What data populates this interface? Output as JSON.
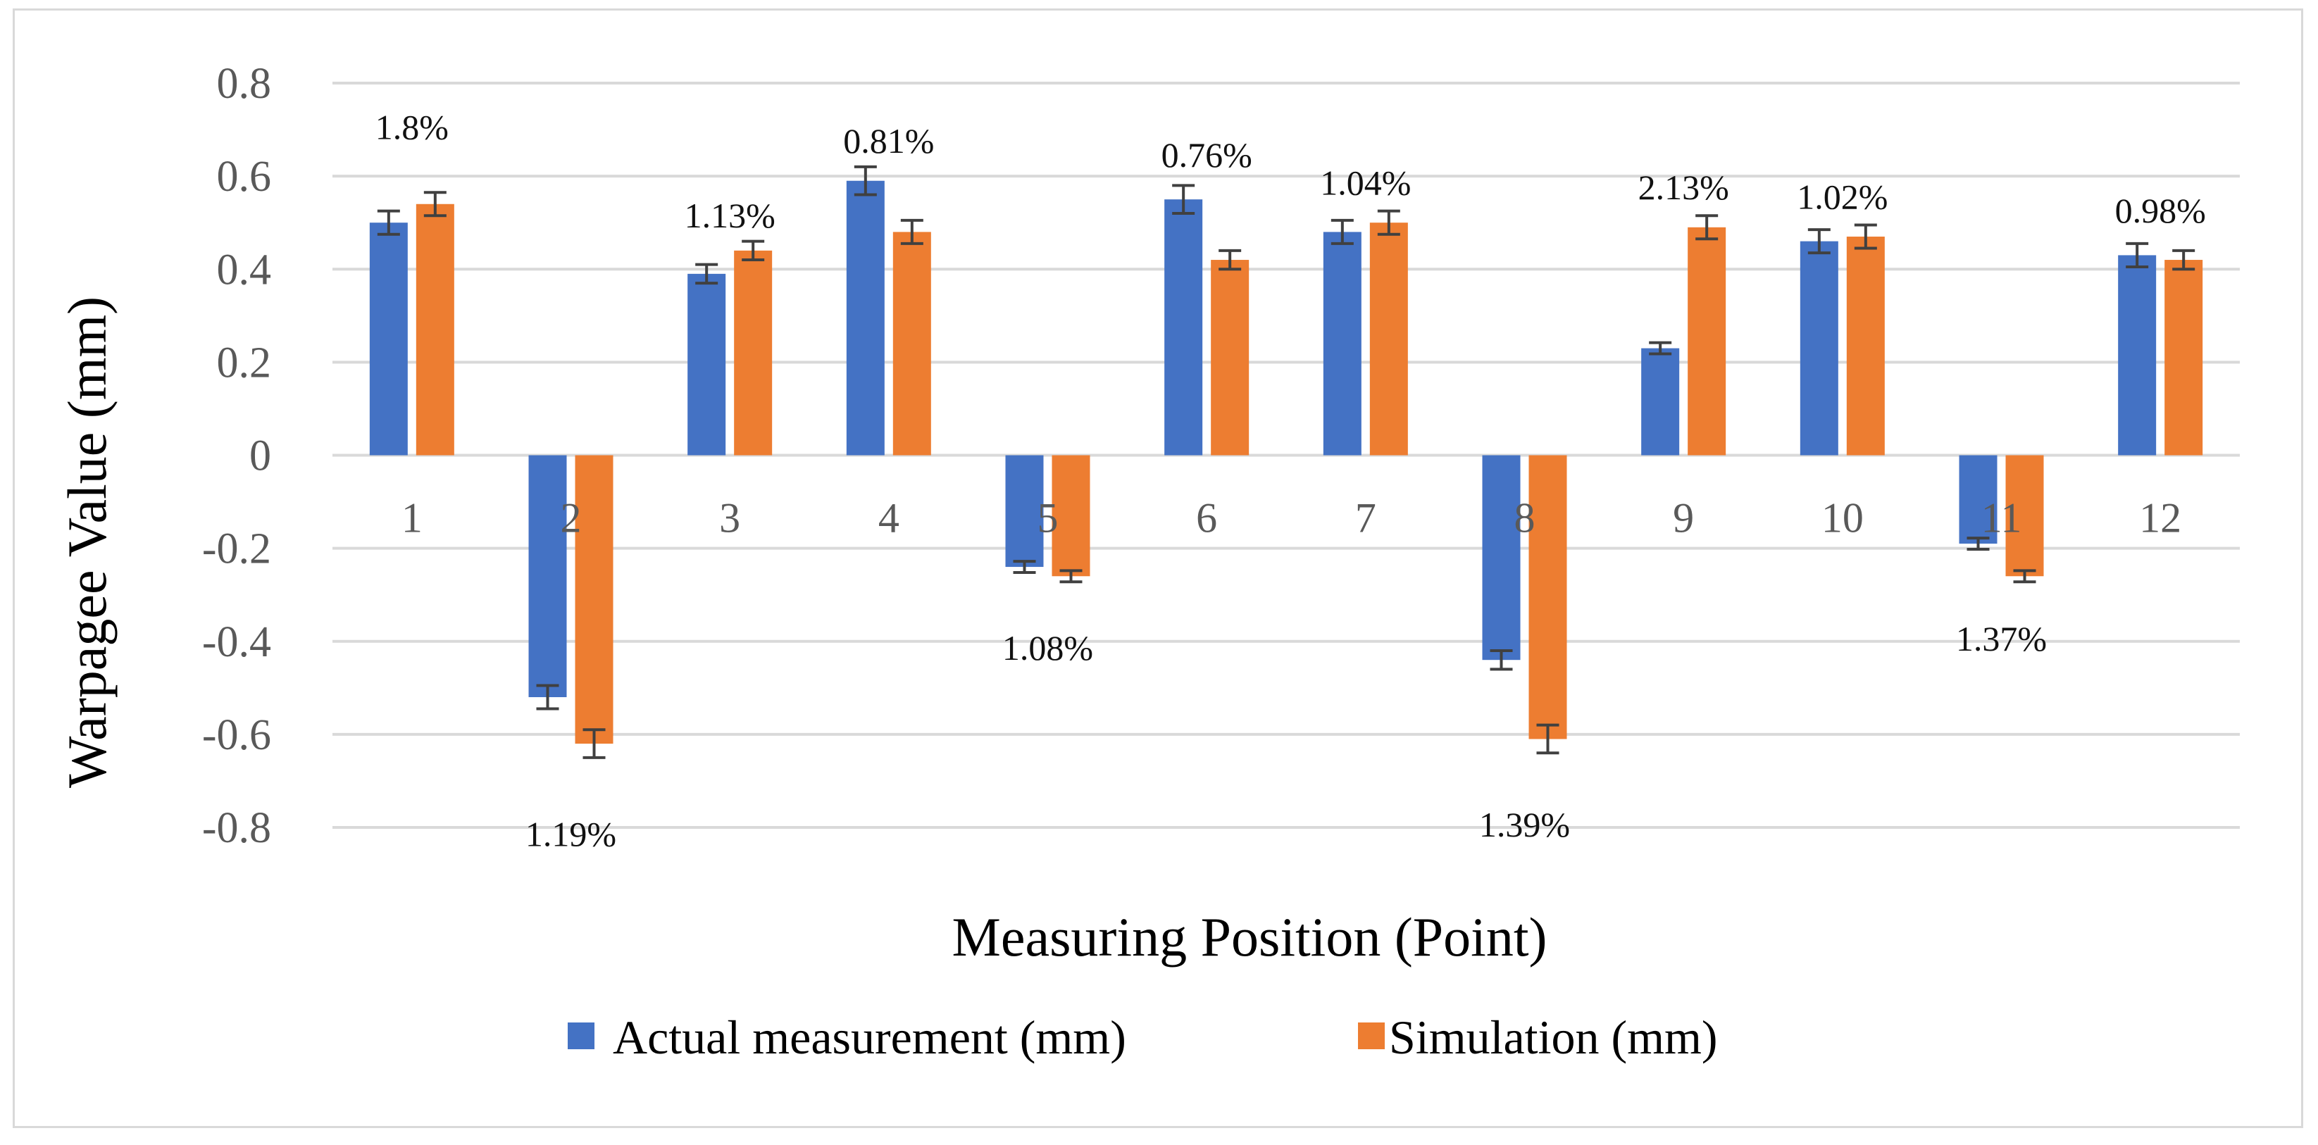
{
  "chart_data": {
    "type": "bar",
    "title": "",
    "xlabel": "Measuring Position (Point)",
    "ylabel": "Warpagee Value (mm)",
    "ylim": [
      -0.8,
      0.8
    ],
    "yticks": [
      0.8,
      0.6,
      0.4,
      0.2,
      0,
      -0.2,
      -0.4,
      -0.6,
      -0.8
    ],
    "ytick_labels": [
      "0.8",
      "0.6",
      "0.4",
      "0.2",
      "0",
      "-0.2",
      "-0.4",
      "-0.6",
      "-0.8"
    ],
    "grid": true,
    "legend_position": "bottom",
    "categories": [
      "1",
      "2",
      "3",
      "4",
      "5",
      "6",
      "7",
      "8",
      "9",
      "10",
      "11",
      "12"
    ],
    "series": [
      {
        "name": "Actual measurement (mm)",
        "color": "#4472c4",
        "values": [
          0.5,
          -0.52,
          0.39,
          0.59,
          -0.24,
          0.55,
          0.48,
          -0.44,
          0.23,
          0.46,
          -0.19,
          0.43
        ],
        "errors": [
          0.025,
          0.025,
          0.02,
          0.03,
          0.012,
          0.03,
          0.025,
          0.02,
          0.012,
          0.025,
          0.012,
          0.025
        ]
      },
      {
        "name": "Simulation (mm)",
        "color": "#ed7d31",
        "values": [
          0.54,
          -0.62,
          0.44,
          0.48,
          -0.26,
          0.42,
          0.5,
          -0.61,
          0.49,
          0.47,
          -0.26,
          0.42
        ],
        "errors": [
          0.025,
          0.03,
          0.02,
          0.025,
          0.012,
          0.02,
          0.025,
          0.03,
          0.025,
          0.025,
          0.012,
          0.02
        ]
      }
    ],
    "annotations": [
      "1.8%",
      "1.19%",
      "1.13%",
      "0.81%",
      "1.08%",
      "0.76%",
      "1.04%",
      "1.39%",
      "2.13%",
      "1.02%",
      "1.37%",
      "0.98%"
    ],
    "annotation_values": [
      0.68,
      -0.84,
      0.49,
      0.65,
      -0.44,
      0.62,
      0.56,
      -0.82,
      0.55,
      0.53,
      -0.42,
      0.5
    ]
  }
}
